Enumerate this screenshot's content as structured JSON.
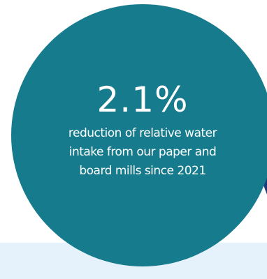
{
  "colors": {
    "main_circle": "#167b8c",
    "side_circle": "#1e3b7b",
    "bottom_band": "#e6f2fb",
    "text": "#ffffff"
  },
  "stat": {
    "value": "2.1%",
    "caption": "reduction of relative water\nintake from our paper and\nboard mills since 2021"
  }
}
